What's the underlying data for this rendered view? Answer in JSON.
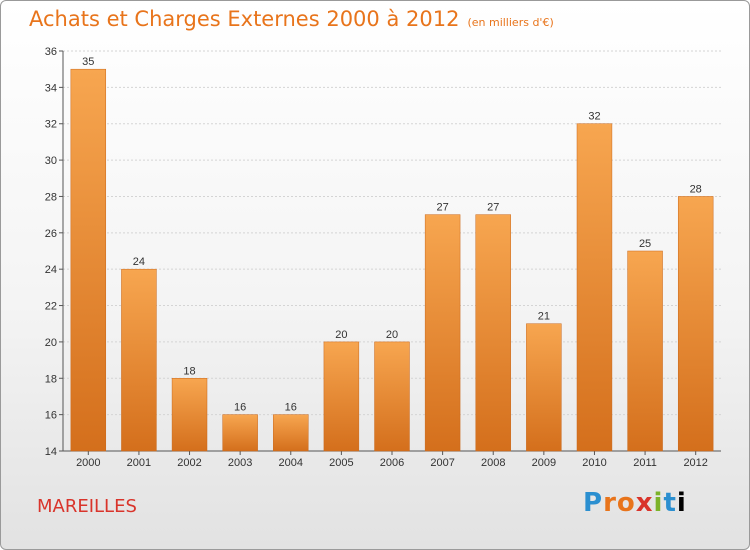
{
  "title": "Achats et Charges Externes 2000 à 2012",
  "unit": "(en milliers d'€)",
  "town": "MAREILLES",
  "logo": "Proxiti",
  "colors": {
    "title": "#e8741b",
    "town": "#d9342b",
    "bar_top": "#f7a650",
    "bar_bottom": "#d46f1c"
  },
  "chart_data": {
    "type": "bar",
    "title": "Achats et Charges Externes 2000 à 2012",
    "subtitle": "(en milliers d'€)",
    "categories": [
      "2000",
      "2001",
      "2002",
      "2003",
      "2004",
      "2005",
      "2006",
      "2007",
      "2008",
      "2009",
      "2010",
      "2011",
      "2012"
    ],
    "values": [
      35,
      24,
      18,
      16,
      16,
      20,
      20,
      27,
      27,
      21,
      32,
      25,
      28
    ],
    "ylim": [
      14,
      36
    ],
    "yticks": [
      14,
      16,
      18,
      20,
      22,
      24,
      26,
      28,
      30,
      32,
      34,
      36
    ],
    "grid": true,
    "legend": "none"
  }
}
